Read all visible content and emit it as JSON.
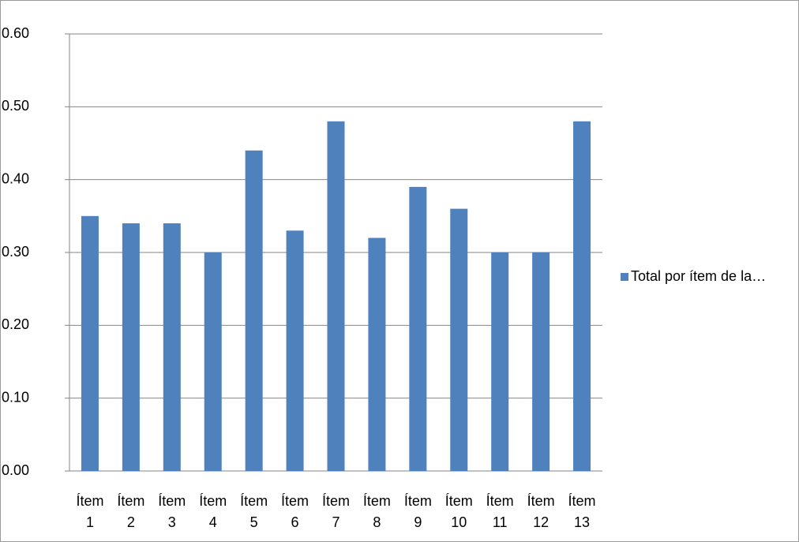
{
  "chart_data": {
    "type": "bar",
    "categories": [
      "Ítem 1",
      "Ítem 2",
      "Ítem 3",
      "Ítem 4",
      "Ítem 5",
      "Ítem 6",
      "Ítem 7",
      "Ítem 8",
      "Ítem 9",
      "Ítem 10",
      "Ítem 11",
      "Ítem 12",
      "Ítem 13"
    ],
    "series": [
      {
        "name": "Total por ítem de la…",
        "color": "#4f81bd",
        "values": [
          0.35,
          0.34,
          0.34,
          0.3,
          0.44,
          0.33,
          0.48,
          0.32,
          0.39,
          0.36,
          0.3,
          0.3,
          0.48
        ]
      }
    ],
    "ylim": [
      0,
      0.6
    ],
    "yticks": [
      {
        "value": 0,
        "label": "0.00"
      },
      {
        "value": 0.1,
        "label": "0.10"
      },
      {
        "value": 0.2,
        "label": "0.20"
      },
      {
        "value": 0.3,
        "label": "0.30"
      },
      {
        "value": 0.4,
        "label": "0.40"
      },
      {
        "value": 0.5,
        "label": "0.50"
      },
      {
        "value": 0.6,
        "label": "0.60"
      }
    ],
    "grid": true,
    "legend": "right"
  }
}
